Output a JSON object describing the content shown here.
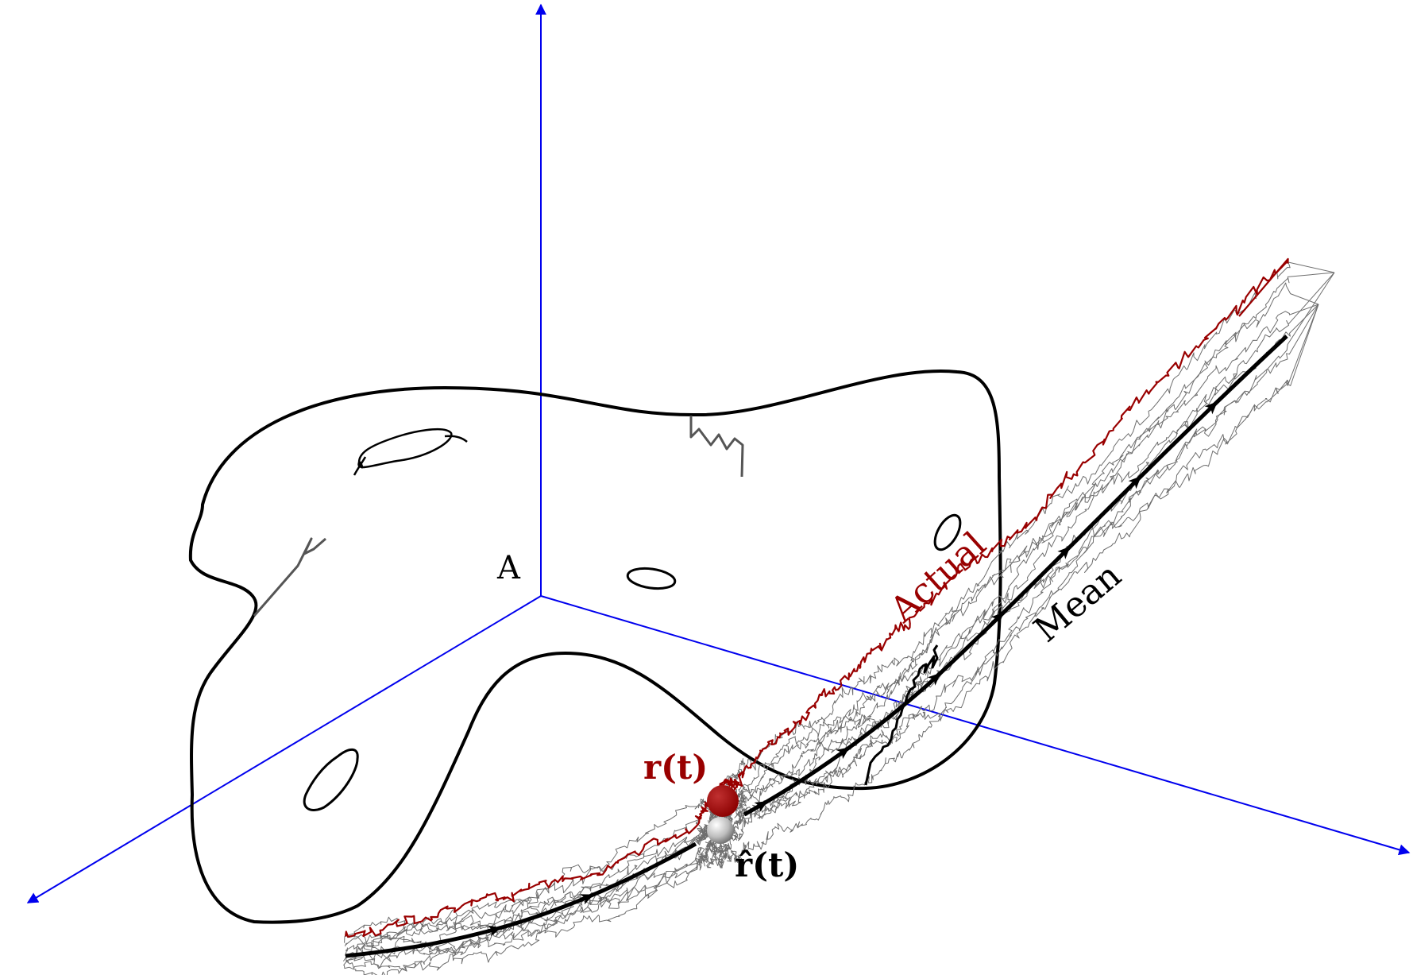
{
  "labels": {
    "region": "A",
    "actual": "Actual",
    "mean": "Mean",
    "actual_position": "r(t)",
    "estimated_position": "r̂(t)"
  },
  "colors": {
    "axis": "#0000ee",
    "actual": "#990000",
    "mean": "#000000",
    "sample_paths": "#6e6e6e",
    "obstacle": "#000000",
    "fragments": "#555555"
  },
  "icons": {
    "actual_marker": "red-sphere",
    "estimate_marker": "grey-sphere"
  }
}
